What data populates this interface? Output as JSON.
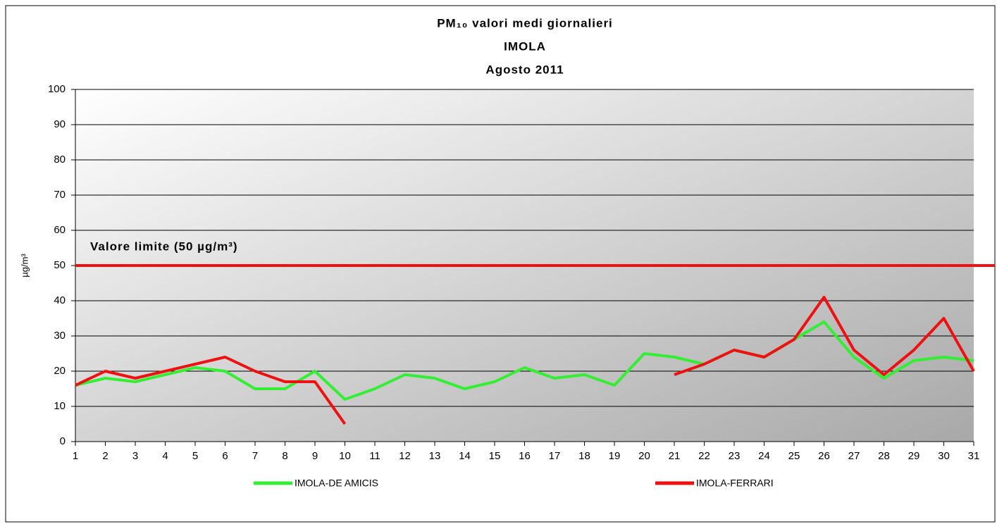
{
  "chart_data": {
    "type": "line",
    "title": [
      "PM₁₀ valori medi giornalieri",
      "IMOLA",
      "Agosto 2011"
    ],
    "y_label": "µg/m³",
    "categories": [
      "1",
      "2",
      "3",
      "4",
      "5",
      "6",
      "7",
      "8",
      "9",
      "10",
      "11",
      "12",
      "13",
      "14",
      "15",
      "16",
      "17",
      "18",
      "19",
      "20",
      "21",
      "22",
      "23",
      "24",
      "25",
      "26",
      "27",
      "28",
      "29",
      "30",
      "31"
    ],
    "series": [
      {
        "name": "IMOLA-DE AMICIS",
        "color": "#33ee33",
        "values": [
          16,
          18,
          17,
          19,
          21,
          20,
          15,
          15,
          20,
          12,
          15,
          19,
          18,
          15,
          17,
          21,
          18,
          19,
          16,
          25,
          24,
          22,
          26,
          24,
          29,
          34,
          24,
          18,
          23,
          24,
          23
        ]
      },
      {
        "name": "IMOLA-FERRARI",
        "color": "#ee1111",
        "values": [
          16,
          20,
          18,
          20,
          22,
          24,
          20,
          17,
          17,
          5,
          null,
          null,
          null,
          null,
          null,
          null,
          null,
          null,
          null,
          null,
          19,
          22,
          26,
          24,
          29,
          41,
          26,
          19,
          26,
          35,
          20
        ]
      }
    ],
    "limit": {
      "value": 50,
      "label": "Valore limite  (50 µg/m³)",
      "color": "#ee1111"
    },
    "ylim": [
      0,
      100
    ],
    "yticks": [
      0,
      10,
      20,
      30,
      40,
      50,
      60,
      70,
      80,
      90,
      100
    ],
    "grid": true,
    "legend": "bottom"
  }
}
